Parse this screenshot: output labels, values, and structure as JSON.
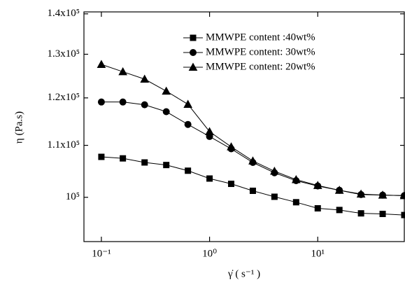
{
  "chart_data": {
    "type": "line",
    "xlabel": "γ̇ ( s⁻¹ )",
    "ylabel": "η (Pa.s)",
    "xscale": "log",
    "yscale": "log",
    "x": [
      0.1,
      0.158,
      0.251,
      0.398,
      0.631,
      1,
      1.585,
      2.512,
      3.981,
      6.31,
      10,
      15.85,
      25.12,
      39.81,
      63.1
    ],
    "series": [
      {
        "name": "MMWPE content :40wt%",
        "color": "#000000",
        "marker": "square",
        "values": [
          107700,
          107400,
          106600,
          106100,
          105000,
          103500,
          102500,
          101200,
          100100,
          99100,
          98000,
          97700,
          97100,
          97000,
          96800
        ]
      },
      {
        "name": "MMWPE content: 30wt%",
        "color": "#000000",
        "marker": "circle",
        "values": [
          119100,
          119100,
          118500,
          117000,
          114300,
          111800,
          109300,
          106600,
          104600,
          103100,
          102100,
          101300,
          100500,
          100400,
          100300
        ]
      },
      {
        "name": "MMWPE content: 20wt%",
        "color": "#000000",
        "marker": "triangle",
        "values": [
          127600,
          125900,
          124200,
          121500,
          118600,
          112800,
          109700,
          106900,
          104900,
          103300,
          102200,
          101300,
          100600,
          100400,
          100300
        ]
      }
    ],
    "xlim": [
      0.069,
      63.1
    ],
    "ylim": [
      92200,
      140500
    ],
    "xticks": [
      {
        "value": 0.1,
        "label": "10⁻¹"
      },
      {
        "value": 1,
        "label": "10⁰"
      },
      {
        "value": 10,
        "label": "10¹"
      }
    ],
    "yticks": [
      {
        "value": 100000,
        "label": "10⁵"
      },
      {
        "value": 110000,
        "label": "1.1x10⁵"
      },
      {
        "value": 120000,
        "label": "1.2x10⁵"
      },
      {
        "value": 130000,
        "label": "1.3x10⁵"
      },
      {
        "value": 140000,
        "label": "1.4x10⁵"
      }
    ],
    "legend": "upper right"
  }
}
